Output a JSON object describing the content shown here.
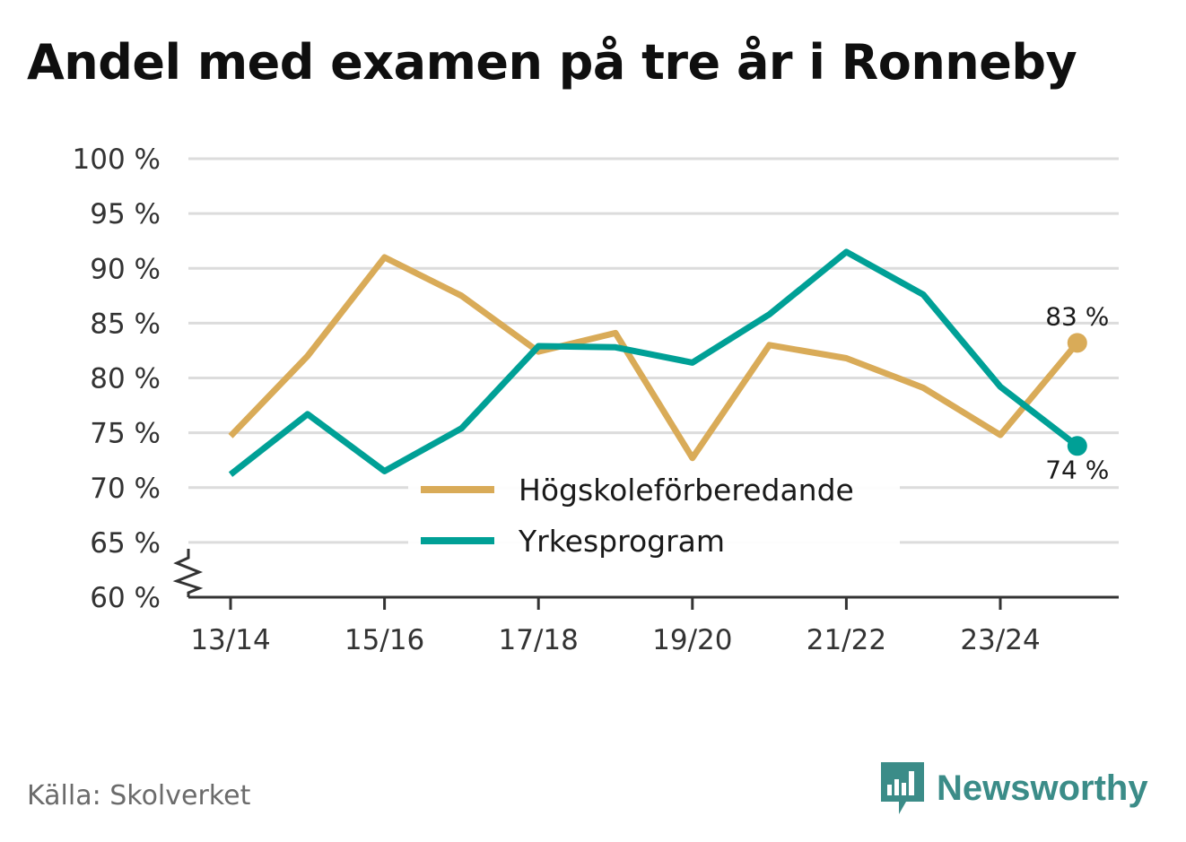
{
  "title": "Andel med examen på tre år i Ronneby",
  "source": "Källa: Skolverket",
  "brand": {
    "name": "Newsworthy",
    "icon": "newsworthy-logo-icon",
    "color": "#3b8c88"
  },
  "chart_data": {
    "type": "line",
    "title": "Andel med examen på tre år i Ronneby",
    "xlabel": "",
    "ylabel": "",
    "x": [
      "13/14",
      "14/15",
      "15/16",
      "16/17",
      "17/18",
      "18/19",
      "19/20",
      "20/21",
      "21/22",
      "22/23",
      "23/24",
      "24/25"
    ],
    "x_tick_labels": [
      "13/14",
      "15/16",
      "17/18",
      "19/20",
      "21/22",
      "23/24"
    ],
    "y_tick_labels": [
      "60 %",
      "65 %",
      "70 %",
      "75 %",
      "80 %",
      "85 %",
      "90 %",
      "95 %",
      "100 %"
    ],
    "ylim": [
      60,
      100
    ],
    "y_axis_break": true,
    "grid": true,
    "legend_position": "bottom-center",
    "series": [
      {
        "name": "Högskoleförberedande",
        "color": "#d9ab58",
        "values": [
          74.7,
          82.0,
          91.0,
          87.5,
          82.4,
          84.1,
          72.7,
          83.0,
          81.8,
          79.1,
          74.8,
          83.2
        ],
        "end_label": "83 %"
      },
      {
        "name": "Yrkesprogram",
        "color": "#00a096",
        "values": [
          71.2,
          76.7,
          71.5,
          75.4,
          82.9,
          82.8,
          81.4,
          85.8,
          91.5,
          87.6,
          79.2,
          73.8
        ],
        "end_label": "74 %"
      }
    ]
  }
}
